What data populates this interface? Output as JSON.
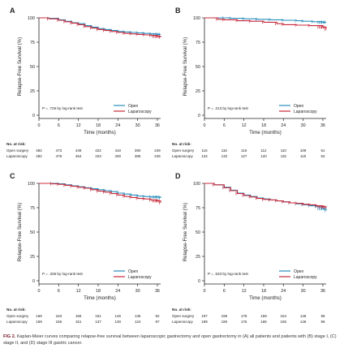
{
  "figure_label": "FIG 2.",
  "caption": "Kaplan-Meier curves comparing relapse-free survival between laparoscopic gastrectomy and open gastrectomy in (A) all patients and patients with (B) stage I, (C) stage II, and (D) stage III gastric cancer.",
  "colors": {
    "open": "#2a8fbd",
    "laparoscopy": "#c8283a",
    "axis": "#222222"
  },
  "risk_header": "No. at risk:",
  "risk_row_labels": [
    "Open surgery",
    "Laparoscopy"
  ],
  "chart_data": [
    {
      "panel": "A",
      "type": "line",
      "xlabel": "Time (months)",
      "ylabel": "Relapse-Free Survival (%)",
      "xlim": [
        0,
        37
      ],
      "ylim": [
        0,
        100
      ],
      "xticks": [
        0,
        6,
        12,
        18,
        24,
        30,
        36
      ],
      "yticks": [
        0,
        25,
        50,
        75,
        100
      ],
      "annotation": "P = .726 by log-rank test",
      "legend_position": "bottom-right",
      "series": [
        {
          "name": "Open",
          "x": [
            0,
            3,
            6,
            8,
            10,
            12,
            14,
            16,
            18,
            20,
            22,
            24,
            26,
            28,
            30,
            32,
            34,
            36,
            37
          ],
          "y": [
            100,
            99.5,
            98,
            96.5,
            95,
            94,
            92,
            90.5,
            89,
            88,
            87,
            86,
            85.5,
            85,
            84.5,
            84,
            83.5,
            83,
            83
          ]
        },
        {
          "name": "Laparoscopy",
          "x": [
            0,
            3,
            6,
            8,
            10,
            12,
            14,
            16,
            18,
            20,
            22,
            24,
            26,
            28,
            30,
            32,
            34,
            36,
            37
          ],
          "y": [
            100,
            99,
            97.5,
            96,
            94.5,
            93,
            91,
            89.5,
            88,
            87,
            86,
            85,
            84,
            83.5,
            83,
            82.5,
            82,
            81,
            80
          ]
        }
      ],
      "risk_times": [
        0,
        6,
        12,
        18,
        24,
        30,
        36
      ],
      "risk_table": [
        [
          "482",
          "473",
          "449",
          "422",
          "410",
          "390",
          "249"
        ],
        [
          "482",
          "479",
          "454",
          "423",
          "400",
          "385",
          "245"
        ]
      ]
    },
    {
      "panel": "B",
      "type": "line",
      "xlabel": "Time (months)",
      "ylabel": "Relapse-Free Survival (%)",
      "xlim": [
        0,
        37
      ],
      "ylim": [
        0,
        100
      ],
      "xticks": [
        0,
        6,
        12,
        18,
        24,
        30,
        36
      ],
      "yticks": [
        0,
        25,
        50,
        75,
        100
      ],
      "annotation": "P = .213 by log-rank test",
      "legend_position": "bottom-right",
      "series": [
        {
          "name": "Open",
          "x": [
            0,
            6,
            8,
            12,
            16,
            20,
            24,
            28,
            30,
            33,
            36,
            37
          ],
          "y": [
            100,
            100,
            99.5,
            99,
            98.5,
            98,
            97.5,
            97,
            96.5,
            96,
            95.5,
            95.5
          ]
        },
        {
          "name": "Laparoscopy",
          "x": [
            0,
            4,
            6,
            10,
            14,
            18,
            22,
            24,
            28,
            32,
            36,
            37
          ],
          "y": [
            100,
            98.5,
            98,
            97,
            96.5,
            95.5,
            94,
            93,
            92.5,
            92,
            90.5,
            88
          ]
        }
      ],
      "risk_times": [
        0,
        6,
        12,
        18,
        24,
        30,
        36
      ],
      "risk_table": [
        [
          "116",
          "116",
          "116",
          "112",
          "110",
          "109",
          "61"
        ],
        [
          "134",
          "132",
          "127",
          "120",
          "115",
          "115",
          "62"
        ]
      ]
    },
    {
      "panel": "C",
      "type": "line",
      "xlabel": "Time (months)",
      "ylabel": "Relapse-Free Survival (%)",
      "xlim": [
        0,
        37
      ],
      "ylim": [
        0,
        100
      ],
      "xticks": [
        0,
        6,
        12,
        18,
        24,
        30,
        36
      ],
      "yticks": [
        0,
        25,
        50,
        75,
        100
      ],
      "annotation": "P = .336 by log-rank test",
      "legend_position": "bottom-right",
      "series": [
        {
          "name": "Open",
          "x": [
            0,
            4,
            6,
            8,
            10,
            12,
            14,
            16,
            18,
            20,
            22,
            24,
            26,
            28,
            30,
            32,
            34,
            36,
            37
          ],
          "y": [
            100,
            100,
            99.5,
            98.5,
            97.5,
            96.5,
            95.5,
            94.5,
            93.5,
            92.5,
            91.5,
            90,
            89,
            88,
            87,
            86.5,
            86,
            86,
            85
          ]
        },
        {
          "name": "Laparoscopy",
          "x": [
            0,
            4,
            6,
            8,
            10,
            12,
            14,
            16,
            18,
            20,
            22,
            24,
            26,
            28,
            30,
            32,
            34,
            36,
            37
          ],
          "y": [
            100,
            99.5,
            99,
            98,
            97,
            96,
            95,
            93.5,
            92,
            91,
            89.5,
            88,
            86.5,
            85.5,
            84.5,
            84,
            83,
            82,
            80
          ]
        }
      ],
      "risk_times": [
        0,
        6,
        12,
        18,
        24,
        30,
        36
      ],
      "risk_table": [
        [
          "169",
          "163",
          "156",
          "151",
          "146",
          "135",
          "92"
        ],
        [
          "159",
          "156",
          "151",
          "137",
          "130",
          "124",
          "87"
        ]
      ]
    },
    {
      "panel": "D",
      "type": "line",
      "xlabel": "Time (months)",
      "ylabel": "Relapse-Free Survival (%)",
      "xlim": [
        0,
        37
      ],
      "ylim": [
        0,
        100
      ],
      "xticks": [
        0,
        6,
        12,
        18,
        24,
        30,
        36
      ],
      "yticks": [
        0,
        25,
        50,
        75,
        100
      ],
      "annotation": "P = .533 by log-rank test",
      "legend_position": "bottom-right",
      "series": [
        {
          "name": "Open",
          "x": [
            0,
            3,
            6,
            8,
            10,
            12,
            14,
            16,
            18,
            20,
            22,
            24,
            26,
            28,
            30,
            32,
            34,
            36,
            37
          ],
          "y": [
            100,
            98.5,
            96,
            93,
            90,
            88,
            86.5,
            85,
            84,
            83,
            82,
            81,
            80,
            79,
            78,
            77,
            76,
            74,
            72
          ]
        },
        {
          "name": "Laparoscopy",
          "x": [
            0,
            3,
            6,
            8,
            10,
            12,
            14,
            16,
            18,
            20,
            22,
            24,
            26,
            28,
            30,
            32,
            34,
            36,
            37
          ],
          "y": [
            100,
            98.5,
            95.5,
            92.5,
            89.5,
            87.5,
            86,
            84.5,
            83.5,
            83,
            82,
            81,
            80,
            79.5,
            78.5,
            78,
            77,
            76,
            75
          ]
        }
      ],
      "risk_times": [
        0,
        6,
        12,
        18,
        24,
        30,
        36
      ],
      "risk_table": [
        [
          "197",
          "195",
          "178",
          "159",
          "154",
          "146",
          "96"
        ],
        [
          "189",
          "190",
          "176",
          "165",
          "155",
          "146",
          "96"
        ]
      ]
    }
  ]
}
